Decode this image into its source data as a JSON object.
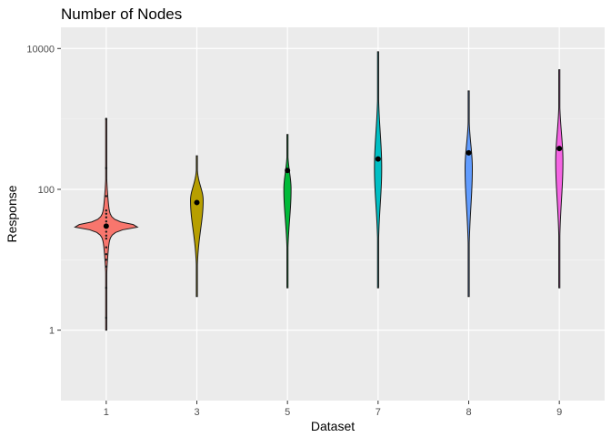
{
  "chart_data": {
    "type": "violin",
    "title": "Number of Nodes",
    "xlabel": "Dataset",
    "ylabel": "Response",
    "y_scale": "log10",
    "ylim": [
      0.1,
      20000
    ],
    "y_ticks": [
      1,
      100,
      10000
    ],
    "y_tick_labels": [
      "1",
      "100",
      "10000"
    ],
    "categories": [
      "1",
      "3",
      "5",
      "7",
      "8",
      "9"
    ],
    "grid": true,
    "legend": "none",
    "series": [
      {
        "category": "1",
        "color": "#F8766D",
        "min": 1,
        "max": 1000,
        "mean": 30,
        "mode": 30,
        "outliers": [
          1000,
          200,
          80,
          50,
          45,
          40,
          35,
          25,
          22,
          20,
          15,
          12,
          10,
          8,
          4,
          1.5
        ]
      },
      {
        "category": "3",
        "color": "#B79F00",
        "min": 3,
        "max": 300,
        "mean": 65,
        "mode": 70
      },
      {
        "category": "5",
        "color": "#00BA38",
        "min": 4,
        "max": 600,
        "mean": 185,
        "mode": 100
      },
      {
        "category": "7",
        "color": "#00BFC4",
        "min": 4,
        "max": 9000,
        "mean": 270,
        "mode": 200
      },
      {
        "category": "8",
        "color": "#619CFF",
        "min": 3,
        "max": 2500,
        "mean": 330,
        "mode": 200
      },
      {
        "category": "9",
        "color": "#F564E3",
        "min": 4,
        "max": 5000,
        "mean": 380,
        "mode": 250
      }
    ]
  }
}
